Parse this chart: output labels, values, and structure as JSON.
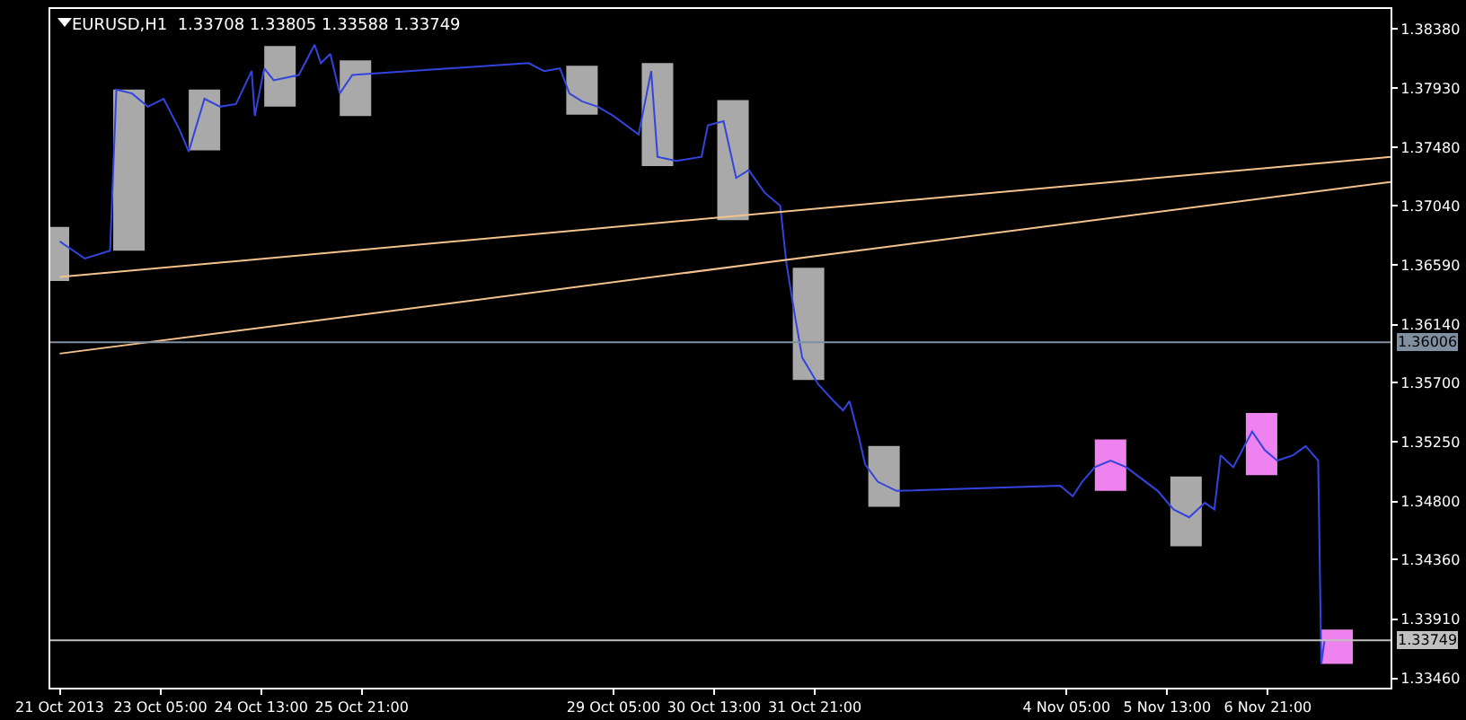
{
  "chart_data": {
    "type": "line",
    "title": "EURUSD,H1  1.33708 1.33805 1.33588 1.33749",
    "xlim": [
      "2013-10-21T18:00",
      "2013-11-08T12:00"
    ],
    "xticks": [
      {
        "value": "2013-10-21T21:00",
        "label": "21 Oct 2013"
      },
      {
        "value": "2013-10-23T05:00",
        "label": "23 Oct 05:00"
      },
      {
        "value": "2013-10-24T13:00",
        "label": "24 Oct 13:00"
      },
      {
        "value": "2013-10-25T21:00",
        "label": "25 Oct 21:00"
      },
      {
        "value": "2013-10-29T05:00",
        "label": "29 Oct 05:00"
      },
      {
        "value": "2013-10-30T13:00",
        "label": "30 Oct 13:00"
      },
      {
        "value": "2013-10-31T21:00",
        "label": "31 Oct 21:00"
      },
      {
        "value": "2013-11-04T05:00",
        "label": "4 Nov 05:00"
      },
      {
        "value": "2013-11-05T13:00",
        "label": "5 Nov 13:00"
      },
      {
        "value": "2013-11-06T21:00",
        "label": "6 Nov 21:00"
      }
    ],
    "ylim": [
      1.3339,
      1.3853
    ],
    "yticks": [
      {
        "value": 1.3838,
        "label": "1.38380"
      },
      {
        "value": 1.3793,
        "label": "1.37930"
      },
      {
        "value": 1.3748,
        "label": "1.37480"
      },
      {
        "value": 1.3704,
        "label": "1.37040"
      },
      {
        "value": 1.3659,
        "label": "1.36590"
      },
      {
        "value": 1.3614,
        "label": "1.36140"
      },
      {
        "value": 1.357,
        "label": "1.35700"
      },
      {
        "value": 1.3525,
        "label": "1.35250"
      },
      {
        "value": 1.348,
        "label": "1.34800"
      },
      {
        "value": 1.3436,
        "label": "1.34360"
      },
      {
        "value": 1.3391,
        "label": "1.33910"
      },
      {
        "value": 1.3346,
        "label": "1.33460"
      }
    ],
    "series": [
      {
        "type": "bar",
        "color": "#a9a9a9",
        "x": [
          "2013-10-21T19:00",
          "2013-10-22T19:00",
          "2013-10-23T19:00",
          "2013-10-24T19:00",
          "2013-10-25T19:00",
          "2013-10-28T19:00",
          "2013-10-29T19:00",
          "2013-10-30T19:00",
          "2013-10-31T19:00",
          "2013-11-01T19:00",
          "2013-11-05T19:00"
        ],
        "base": [
          1.3647,
          1.367,
          1.3746,
          1.3779,
          1.3772,
          1.3773,
          1.3734,
          1.3693,
          1.3572,
          1.3476,
          1.3446
        ],
        "values": [
          0.0041,
          0.0122,
          0.0046,
          0.0046,
          0.0042,
          0.0037,
          0.0078,
          0.0091,
          0.0085,
          0.0046,
          0.0053
        ]
      },
      {
        "type": "bar",
        "color": "#ee82ee",
        "x": [
          "2013-11-04T19:00",
          "2013-11-06T19:00",
          "2013-11-07T19:00"
        ],
        "base": [
          1.3488,
          1.35,
          1.3357
        ],
        "values": [
          0.0039,
          0.0047,
          0.0026
        ]
      },
      {
        "color": "#3344dd",
        "x": [
          "2013-10-21T21:00",
          "2013-10-22T05:00",
          "2013-10-22T13:00",
          "2013-10-22T15:00",
          "2013-10-22T20:00",
          "2013-10-23T01:00",
          "2013-10-23T06:00",
          "2013-10-23T11:00",
          "2013-10-23T14:00",
          "2013-10-23T19:00",
          "2013-10-24T00:00",
          "2013-10-24T05:00",
          "2013-10-24T10:00",
          "2013-10-24T11:00",
          "2013-10-24T14:00",
          "2013-10-24T17:00",
          "2013-10-25T01:00",
          "2013-10-25T06:00",
          "2013-10-25T08:00",
          "2013-10-25T11:00",
          "2013-10-25T14:00",
          "2013-10-25T18:00",
          "2013-10-28T02:00",
          "2013-10-28T07:00",
          "2013-10-28T12:00",
          "2013-10-28T15:00",
          "2013-10-28T19:00",
          "2013-10-29T00:00",
          "2013-10-29T05:00",
          "2013-10-29T13:00",
          "2013-10-29T17:00",
          "2013-10-29T19:00",
          "2013-10-30T01:00",
          "2013-10-30T09:00",
          "2013-10-30T11:00",
          "2013-10-30T16:00",
          "2013-10-30T20:00",
          "2013-10-31T00:00",
          "2013-10-31T05:00",
          "2013-10-31T10:00",
          "2013-10-31T12:00",
          "2013-10-31T15:00",
          "2013-10-31T17:00",
          "2013-10-31T22:00",
          "2013-11-01T03:00",
          "2013-11-01T06:00",
          "2013-11-01T08:00",
          "2013-11-01T11:00",
          "2013-11-01T13:00",
          "2013-11-01T17:00",
          "2013-11-01T23:00",
          "2013-11-04T03:00",
          "2013-11-04T07:00",
          "2013-11-04T10:00",
          "2013-11-04T14:00",
          "2013-11-04T19:00",
          "2013-11-05T00:00",
          "2013-11-05T05:00",
          "2013-11-05T10:00",
          "2013-11-05T15:00",
          "2013-11-05T20:00",
          "2013-11-06T01:00",
          "2013-11-06T04:00",
          "2013-11-06T06:00",
          "2013-11-06T10:00",
          "2013-11-06T14:00",
          "2013-11-06T16:00",
          "2013-11-06T20:00",
          "2013-11-07T00:00",
          "2013-11-07T05:00",
          "2013-11-07T09:00",
          "2013-11-07T13:00",
          "2013-11-07T14:00",
          "2013-11-07T15:00"
        ],
        "values": [
          1.3677,
          1.3664,
          1.367,
          1.3792,
          1.3789,
          1.3779,
          1.3785,
          1.3762,
          1.3745,
          1.3785,
          1.3779,
          1.3781,
          1.3806,
          1.3772,
          1.3808,
          1.3799,
          1.3803,
          1.3826,
          1.3812,
          1.3819,
          1.3789,
          1.3803,
          1.3812,
          1.3806,
          1.3808,
          1.3789,
          1.3783,
          1.3779,
          1.3772,
          1.3758,
          1.3806,
          1.3741,
          1.3738,
          1.3741,
          1.3765,
          1.3768,
          1.3725,
          1.3731,
          1.3714,
          1.3704,
          1.366,
          1.3616,
          1.3589,
          1.3569,
          1.3556,
          1.3549,
          1.3556,
          1.3529,
          1.3508,
          1.3495,
          1.3488,
          1.3492,
          1.3484,
          1.3495,
          1.3506,
          1.3511,
          1.3506,
          1.3497,
          1.3488,
          1.3474,
          1.3468,
          1.3479,
          1.3474,
          1.3515,
          1.3506,
          1.3524,
          1.3533,
          1.3519,
          1.3511,
          1.3515,
          1.3522,
          1.3511,
          1.3357,
          1.3375
        ]
      },
      {
        "type": "line",
        "color": "#f4c28c",
        "x": [
          "2013-10-21T21:00",
          "2013-11-08T12:00"
        ],
        "values": [
          1.365,
          1.3741
        ]
      },
      {
        "type": "line",
        "color": "#f4c28c",
        "x": [
          "2013-10-21T21:00",
          "2013-11-08T12:00"
        ],
        "values": [
          1.3592,
          1.3722
        ]
      }
    ],
    "ref_lines": [
      {
        "axis": "y",
        "value": 1.36006,
        "label": "1.36006",
        "color": "#8090a0"
      },
      {
        "axis": "y",
        "value": 1.33749,
        "label": "1.33749",
        "color": "#c0c0c0"
      }
    ]
  }
}
